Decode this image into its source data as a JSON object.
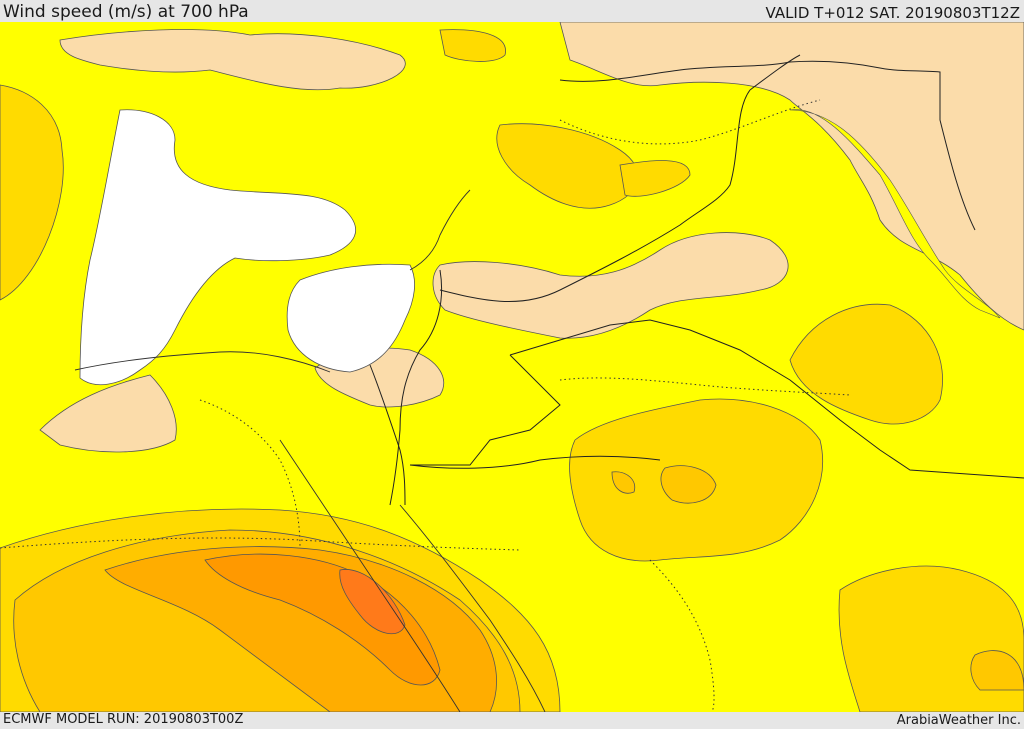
{
  "header": {
    "title": "Wind speed (m/s) at 700 hPa",
    "valid": "VALID T+012 SAT. 20190803T12Z"
  },
  "footer": {
    "model_run": "ECMWF MODEL RUN: 20190803T00Z",
    "credit": "ArabiaWeather Inc."
  },
  "colors": {
    "background_level": "#ffff00",
    "level_1": "#fbdcaa",
    "level_2": "#ffdb00",
    "level_3": "#ffc800",
    "level_4": "#ffad00",
    "level_5": "#ff9900",
    "level_6": "#ff7a1a",
    "masked": "#ffffff"
  }
}
